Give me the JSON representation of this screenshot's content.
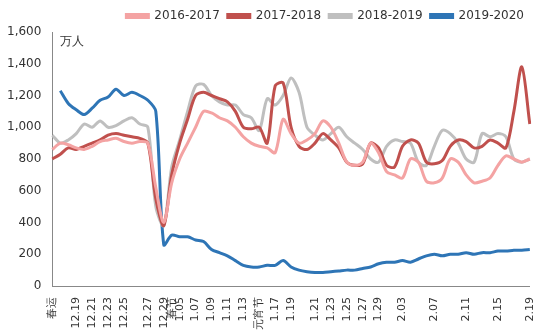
{
  "chart_data": {
    "type": "line",
    "y_label": "万人",
    "categories": [
      "春运",
      null,
      null,
      "12.19",
      null,
      "12.21",
      null,
      "12.23",
      null,
      "12.25",
      null,
      null,
      "12.27",
      null,
      "12.29",
      "春节",
      "1.05",
      null,
      "1.07",
      null,
      "1.09",
      null,
      "1.11",
      null,
      "1.13",
      null,
      "元宵节",
      null,
      "1.17",
      null,
      "1.19",
      null,
      null,
      "1.21",
      null,
      "1.23",
      null,
      "1.25",
      null,
      "1.27",
      null,
      "1.29",
      null,
      null,
      "2.03",
      null,
      null,
      null,
      "2.07",
      null,
      null,
      null,
      "2.11",
      null,
      null,
      null,
      "2.15",
      null,
      null,
      null,
      "2.19"
    ],
    "series": [
      {
        "name": "2016-2017",
        "color": "#f4a3a3",
        "values": [
          860,
          900,
          890,
          870,
          860,
          880,
          910,
          920,
          930,
          910,
          900,
          910,
          900,
          620,
          400,
          650,
          800,
          900,
          1000,
          1100,
          1090,
          1060,
          1040,
          1000,
          940,
          900,
          880,
          870,
          840,
          1050,
          960,
          900,
          920,
          960,
          1040,
          1000,
          900,
          780,
          760,
          780,
          900,
          840,
          720,
          700,
          680,
          800,
          780,
          660,
          650,
          680,
          800,
          780,
          700,
          650,
          660,
          680,
          760,
          820,
          800,
          780,
          800
        ]
      },
      {
        "name": "2017-2018",
        "color": "#c0504d",
        "values": [
          800,
          830,
          870,
          860,
          880,
          900,
          920,
          950,
          960,
          950,
          940,
          930,
          900,
          550,
          380,
          700,
          900,
          1050,
          1200,
          1220,
          1200,
          1180,
          1160,
          1100,
          1000,
          990,
          1000,
          900,
          1260,
          1280,
          1000,
          880,
          860,
          900,
          960,
          920,
          870,
          780,
          760,
          770,
          900,
          870,
          760,
          750,
          880,
          920,
          900,
          780,
          770,
          790,
          880,
          920,
          910,
          870,
          880,
          920,
          900,
          870,
          1100,
          1380,
          1020
        ]
      },
      {
        "name": "2018-2019",
        "color": "#bfbfbf",
        "values": [
          950,
          900,
          920,
          960,
          1020,
          1000,
          1040,
          1000,
          1010,
          1040,
          1060,
          1020,
          1000,
          500,
          380,
          750,
          920,
          1100,
          1260,
          1270,
          1200,
          1160,
          1140,
          1140,
          1080,
          1060,
          980,
          1180,
          1140,
          1200,
          1310,
          1220,
          1000,
          950,
          920,
          960,
          1000,
          940,
          900,
          860,
          800,
          780,
          880,
          920,
          910,
          900,
          780,
          760,
          880,
          980,
          960,
          900,
          800,
          780,
          960,
          940,
          960,
          940,
          800,
          780,
          800
        ]
      },
      {
        "name": "2019-2020",
        "color": "#2e75b6",
        "values": [
          null,
          1230,
          1150,
          1110,
          1080,
          1120,
          1170,
          1190,
          1240,
          1200,
          1220,
          1200,
          1170,
          1100,
          260,
          320,
          310,
          310,
          290,
          280,
          230,
          210,
          190,
          160,
          130,
          120,
          120,
          130,
          130,
          160,
          120,
          100,
          90,
          85,
          85,
          90,
          95,
          100,
          100,
          110,
          120,
          140,
          150,
          150,
          160,
          150,
          170,
          190,
          200,
          190,
          200,
          200,
          210,
          200,
          210,
          210,
          220,
          220,
          225,
          225,
          230
        ]
      }
    ],
    "ylim": [
      0,
      1600
    ],
    "yticks": [
      0,
      200,
      400,
      600,
      800,
      1000,
      1200,
      1400,
      1600
    ],
    "grid": false,
    "legend": "top-right"
  }
}
